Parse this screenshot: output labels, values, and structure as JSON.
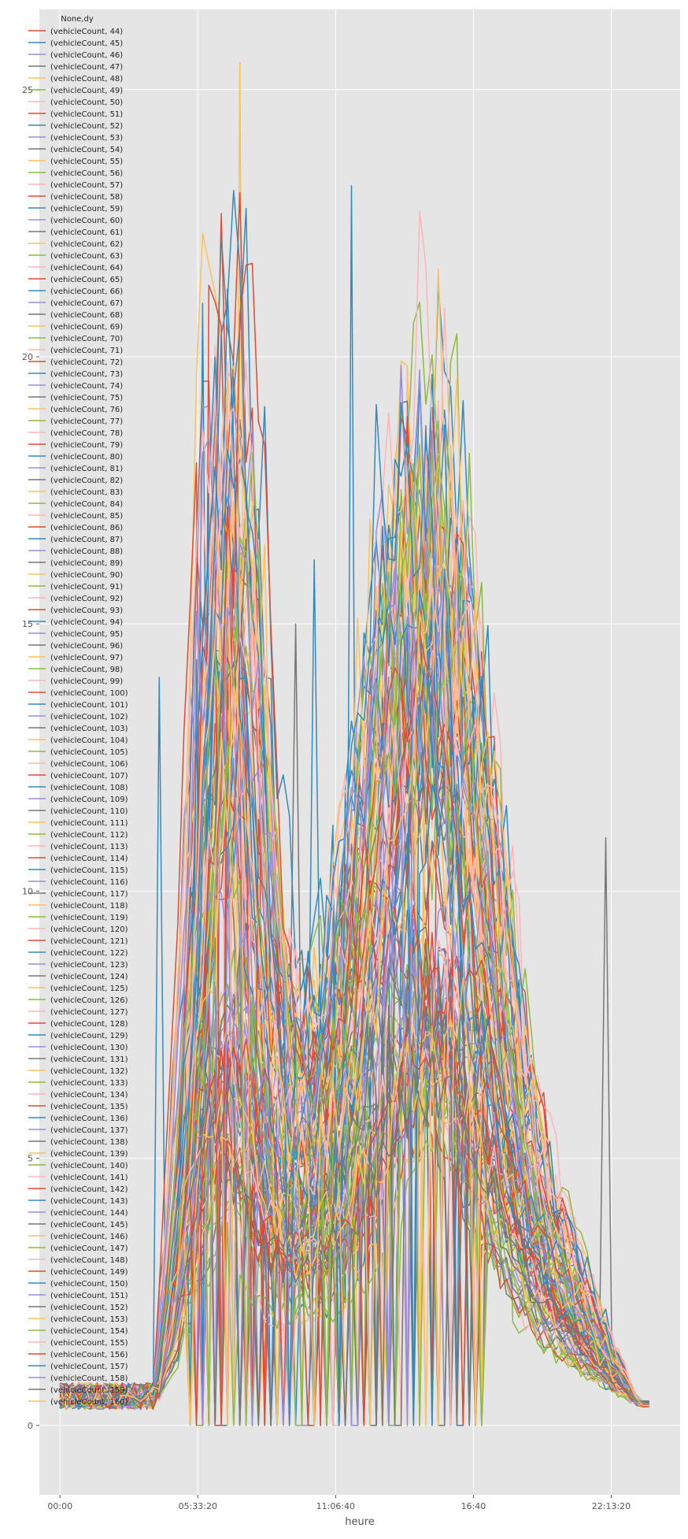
{
  "chart_data": {
    "type": "line",
    "xlabel": "heure",
    "ylabel": "",
    "x_tick_labels": [
      "00:00",
      "05:33:20",
      "11:06:40",
      "16:40",
      "22:13:20"
    ],
    "x_tick_seconds": [
      0,
      20000,
      40000,
      60000,
      80000
    ],
    "xlim_seconds": [
      -3000,
      90000
    ],
    "y_ticks": [
      0,
      5,
      10,
      15,
      20,
      25
    ],
    "ylim": [
      -1.3,
      26.5
    ],
    "grid": true,
    "legend_title": "None,dy",
    "legend_position": "top-left",
    "series_name_prefix": "vehicleCount",
    "series_ids": [
      44,
      45,
      46,
      47,
      48,
      49,
      50,
      51,
      52,
      53,
      54,
      55,
      56,
      57,
      58,
      59,
      60,
      61,
      62,
      63,
      64,
      65,
      66,
      67,
      68,
      69,
      70,
      71,
      72,
      73,
      74,
      75,
      76,
      77,
      78,
      79,
      80,
      81,
      82,
      83,
      84,
      85,
      86,
      87,
      88,
      89,
      90,
      91,
      92,
      93,
      94,
      95,
      96,
      97,
      98,
      99,
      100,
      101,
      102,
      103,
      104,
      105,
      106,
      107,
      108,
      109,
      110,
      111,
      112,
      113,
      114,
      115,
      116,
      117,
      118,
      119,
      120,
      121,
      122,
      123,
      124,
      125,
      126,
      127,
      128,
      129,
      130,
      131,
      132,
      133,
      134,
      135,
      136,
      137,
      138,
      139,
      140,
      141,
      142,
      143,
      144,
      145,
      146,
      147,
      148,
      149,
      150,
      151,
      152,
      153,
      154,
      155,
      156,
      157,
      158,
      159,
      160
    ],
    "palette": [
      "#E24A33",
      "#348ABD",
      "#988ED5",
      "#777777",
      "#FBC15E",
      "#8EBA42",
      "#FFB5B8"
    ],
    "profile_notes": "approximate daily vehicle-count curves per detector, 15-minute resolution",
    "notable_peaks": [
      {
        "series": 48,
        "time_seconds": 26500,
        "value": 25.5
      },
      {
        "series": 59,
        "time_seconds": 42500,
        "value": 23.2
      },
      {
        "series": 45,
        "time_seconds": 21000,
        "value": 21.0
      },
      {
        "series": 57,
        "time_seconds": 50700,
        "value": 19.8
      },
      {
        "series": 61,
        "time_seconds": 33800,
        "value": 15.0
      },
      {
        "series": 94,
        "time_seconds": 36500,
        "value": 16.2
      },
      {
        "series": 49,
        "time_seconds": 57500,
        "value": 14.3
      },
      {
        "series": 47,
        "time_seconds": 78800,
        "value": 11.0
      },
      {
        "series": 56,
        "time_seconds": 65000,
        "value": 8.3
      },
      {
        "series": 73,
        "time_seconds": 14000,
        "value": 14.0
      }
    ]
  }
}
